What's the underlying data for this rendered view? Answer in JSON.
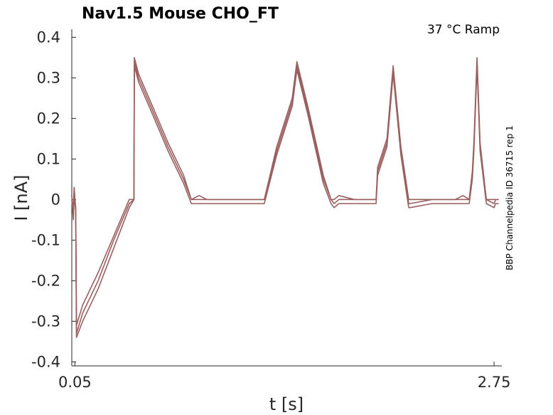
{
  "chart_data": {
    "type": "line",
    "title": "Nav1.5  Mouse  CHO_FT",
    "annotation": "37 °C  Ramp",
    "side_label": "BBP Channelpedia ID 36715 rep 1",
    "xlabel": "t [s]",
    "ylabel": "I [nA]",
    "xlim": [
      0.03,
      2.8
    ],
    "ylim": [
      -0.41,
      0.42
    ],
    "xticks": [
      0.05,
      2.75
    ],
    "xtick_labels": [
      "0.05",
      "2.75"
    ],
    "yticks": [
      0.4,
      0.3,
      0.2,
      0.1,
      0,
      -0.1,
      -0.2,
      -0.3,
      -0.4
    ],
    "ytick_labels": [
      "0.4",
      "0.3",
      "0.2",
      "0.1",
      "0",
      "-0.1",
      "-0.2",
      "-0.3",
      "-0.4"
    ],
    "grid": false,
    "line_color": "#9a5f5f",
    "series": [
      {
        "x": [
          0.03,
          0.04,
          0.045,
          0.05,
          0.055,
          0.06,
          0.1,
          0.2,
          0.3,
          0.4,
          0.43,
          0.433,
          0.46,
          0.55,
          0.65,
          0.75,
          0.8,
          0.85,
          0.9,
          1.2,
          1.27,
          1.35,
          1.45,
          1.48,
          1.55,
          1.65,
          1.7,
          1.72,
          1.75,
          1.85,
          1.95,
          1.99,
          2.0,
          2.06,
          2.1,
          2.15,
          2.2,
          2.21,
          2.35,
          2.5,
          2.55,
          2.59,
          2.61,
          2.62,
          2.64,
          2.66,
          2.7,
          2.75,
          2.76,
          2.78
        ],
        "y": [
          0.01,
          -0.04,
          0.03,
          0.0,
          -0.02,
          -0.33,
          -0.28,
          -0.2,
          -0.1,
          -0.01,
          0.0,
          0.34,
          0.3,
          0.22,
          0.13,
          0.05,
          0.0,
          0.0,
          0.0,
          0.0,
          0.0,
          0.12,
          0.24,
          0.33,
          0.22,
          0.05,
          0.0,
          -0.01,
          0.0,
          0.0,
          0.0,
          0.0,
          0.07,
          0.14,
          0.32,
          0.12,
          -0.01,
          -0.01,
          0.0,
          0.0,
          0.0,
          0.0,
          0.06,
          0.13,
          0.34,
          0.13,
          0.0,
          -0.01,
          0.0,
          0.0
        ]
      },
      {
        "x": [
          0.03,
          0.04,
          0.045,
          0.05,
          0.055,
          0.06,
          0.1,
          0.2,
          0.3,
          0.4,
          0.43,
          0.433,
          0.46,
          0.55,
          0.65,
          0.75,
          0.8,
          0.85,
          0.9,
          1.2,
          1.27,
          1.35,
          1.45,
          1.48,
          1.55,
          1.65,
          1.7,
          1.72,
          1.75,
          1.85,
          1.95,
          1.99,
          2.0,
          2.06,
          2.1,
          2.15,
          2.2,
          2.21,
          2.35,
          2.5,
          2.55,
          2.59,
          2.61,
          2.62,
          2.64,
          2.66,
          2.7,
          2.75,
          2.76,
          2.78
        ],
        "y": [
          0.0,
          -0.05,
          0.02,
          -0.01,
          -0.03,
          -0.34,
          -0.3,
          -0.22,
          -0.12,
          -0.02,
          0.0,
          0.33,
          0.29,
          0.21,
          0.12,
          0.04,
          -0.01,
          -0.01,
          -0.01,
          -0.01,
          -0.01,
          0.11,
          0.23,
          0.32,
          0.21,
          0.04,
          -0.01,
          -0.02,
          -0.01,
          -0.01,
          -0.01,
          -0.01,
          0.06,
          0.13,
          0.31,
          0.11,
          -0.02,
          -0.02,
          -0.01,
          -0.01,
          -0.01,
          -0.01,
          0.05,
          0.12,
          0.33,
          0.12,
          -0.01,
          -0.02,
          -0.01,
          -0.01
        ]
      },
      {
        "x": [
          0.03,
          0.04,
          0.045,
          0.05,
          0.055,
          0.06,
          0.1,
          0.2,
          0.3,
          0.4,
          0.43,
          0.433,
          0.46,
          0.55,
          0.65,
          0.75,
          0.8,
          0.85,
          0.9,
          1.2,
          1.27,
          1.35,
          1.45,
          1.48,
          1.55,
          1.65,
          1.7,
          1.72,
          1.75,
          1.85,
          1.95,
          1.99,
          2.0,
          2.06,
          2.1,
          2.15,
          2.2,
          2.21,
          2.35,
          2.5,
          2.55,
          2.59,
          2.61,
          2.62,
          2.64,
          2.66,
          2.7,
          2.75,
          2.76,
          2.78
        ],
        "y": [
          0.01,
          -0.03,
          0.03,
          0.0,
          -0.02,
          -0.31,
          -0.26,
          -0.18,
          -0.09,
          0.0,
          0.0,
          0.35,
          0.31,
          0.23,
          0.14,
          0.06,
          0.0,
          0.01,
          0.0,
          0.0,
          0.0,
          0.13,
          0.25,
          0.34,
          0.23,
          0.06,
          0.0,
          0.0,
          0.01,
          0.0,
          0.0,
          0.0,
          0.08,
          0.15,
          0.33,
          0.13,
          0.0,
          0.0,
          0.0,
          0.0,
          0.01,
          0.0,
          0.07,
          0.14,
          0.35,
          0.14,
          0.0,
          0.0,
          0.0,
          0.0
        ]
      }
    ]
  }
}
